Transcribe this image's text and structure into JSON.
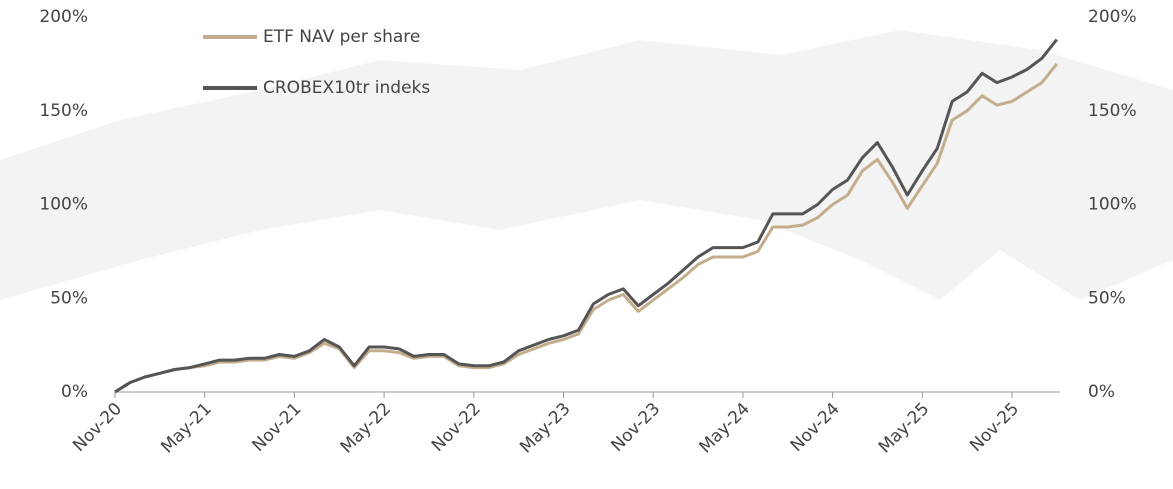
{
  "chart_data": {
    "type": "line",
    "categories": [
      "Nov-20",
      null,
      null,
      null,
      null,
      null,
      "May-21",
      null,
      null,
      null,
      null,
      null,
      "Nov-21",
      null,
      null,
      null,
      null,
      null,
      "May-22",
      null,
      null,
      null,
      null,
      null,
      "Nov-22",
      null,
      null,
      null,
      null,
      null,
      "May-23",
      null,
      null,
      null,
      null,
      null,
      "Nov-23",
      null,
      null,
      null,
      null,
      null,
      "May-24",
      null,
      null,
      null,
      null,
      null,
      "Nov-24",
      null,
      null,
      null,
      null,
      null,
      "May-25",
      null,
      null,
      null,
      null,
      null,
      "Nov-25",
      null,
      null,
      null
    ],
    "series": [
      {
        "name": "ETF NAV per share",
        "color": "#c4ad8c",
        "values": [
          0,
          5,
          8,
          10,
          12,
          13,
          14,
          16,
          16,
          17,
          17,
          19,
          18,
          21,
          26,
          23,
          13,
          22,
          22,
          21,
          18,
          19,
          19,
          14,
          13,
          13,
          15,
          20,
          23,
          26,
          28,
          31,
          44,
          49,
          52,
          43,
          49,
          55,
          61,
          68,
          72,
          72,
          72,
          75,
          88,
          88,
          89,
          93,
          100,
          105,
          118,
          124,
          112,
          98,
          110,
          122,
          145,
          150,
          158,
          153,
          155,
          160,
          165,
          175
        ]
      },
      {
        "name": "CROBEX10tr indeks",
        "color": "#555555",
        "values": [
          0,
          5,
          8,
          10,
          12,
          13,
          15,
          17,
          17,
          18,
          18,
          20,
          19,
          22,
          28,
          24,
          14,
          24,
          24,
          23,
          19,
          20,
          20,
          15,
          14,
          14,
          16,
          22,
          25,
          28,
          30,
          33,
          47,
          52,
          55,
          46,
          52,
          58,
          65,
          72,
          77,
          77,
          77,
          80,
          95,
          95,
          95,
          100,
          108,
          113,
          125,
          133,
          120,
          105,
          118,
          130,
          155,
          160,
          170,
          165,
          168,
          172,
          178,
          188
        ]
      }
    ],
    "ylim": [
      0,
      200
    ],
    "yticks": [
      {
        "value": 0,
        "label": "0%"
      },
      {
        "value": 50,
        "label": "50%"
      },
      {
        "value": 100,
        "label": "100%"
      },
      {
        "value": 150,
        "label": "150%"
      },
      {
        "value": 200,
        "label": "200%"
      }
    ],
    "y2lim": [
      0,
      200
    ],
    "y2ticks": [
      {
        "value": 0,
        "label": "0%"
      },
      {
        "value": 50,
        "label": "50%"
      },
      {
        "value": 100,
        "label": "100%"
      },
      {
        "value": 150,
        "label": "150%"
      },
      {
        "value": 200,
        "label": "200%"
      }
    ],
    "legend": "upper left"
  }
}
